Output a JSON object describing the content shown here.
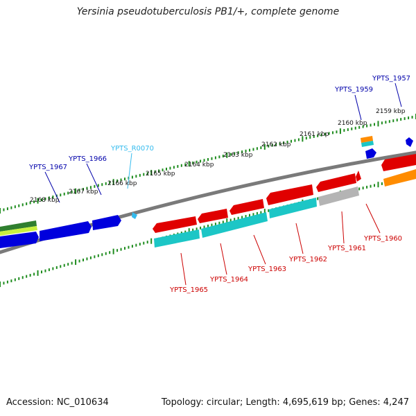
{
  "title": "Yersinia pseudotuberculosis PB1/+, complete genome",
  "footer": {
    "accession": "Accession: NC_010634",
    "topology": "Topology: circular;",
    "length": "Length: 4,695,619 bp;",
    "genes": "Genes: 4,247"
  },
  "colors": {
    "backbone": "#7a7a7a",
    "tick": "#1e8c1e",
    "forward_gene": "#0000dd",
    "reverse_gene": "#e00000",
    "cds": "#1cc6c6",
    "rna": "#33bbee",
    "pseudo": "#b4b4b4",
    "orange": "#ff8c00",
    "darkgreen": "#2f7f2f",
    "lime": "#c8f040",
    "forward_label": "#0000aa",
    "reverse_label": "#cc0000",
    "rna_label": "#33bbee"
  },
  "scale_labels": [
    {
      "kbp": 2159,
      "text": "2159 kbp"
    },
    {
      "kbp": 2160,
      "text": "2160 kbp"
    },
    {
      "kbp": 2161,
      "text": "2161 kbp"
    },
    {
      "kbp": 2162,
      "text": "2162 kbp"
    },
    {
      "kbp": 2163,
      "text": "2163 kbp"
    },
    {
      "kbp": 2164,
      "text": "2164 kbp"
    },
    {
      "kbp": 2165,
      "text": "2165 kbp"
    },
    {
      "kbp": 2166,
      "text": "2166 kbp"
    },
    {
      "kbp": 2167,
      "text": "2167 kbp"
    },
    {
      "kbp": 2168,
      "text": "2168 kbp"
    }
  ],
  "gene_labels": [
    {
      "text": "YPTS_1957",
      "strand": "forward"
    },
    {
      "text": "YPTS_1959",
      "strand": "forward"
    },
    {
      "text": "YPTS_R0070",
      "strand": "rna"
    },
    {
      "text": "YPTS_1966",
      "strand": "forward"
    },
    {
      "text": "YPTS_1967",
      "strand": "forward"
    },
    {
      "text": "YPTS_1960",
      "strand": "reverse"
    },
    {
      "text": "YPTS_1961",
      "strand": "reverse"
    },
    {
      "text": "YPTS_1962",
      "strand": "reverse"
    },
    {
      "text": "YPTS_1963",
      "strand": "reverse"
    },
    {
      "text": "YPTS_1964",
      "strand": "reverse"
    },
    {
      "text": "YPTS_1965",
      "strand": "reverse"
    }
  ]
}
